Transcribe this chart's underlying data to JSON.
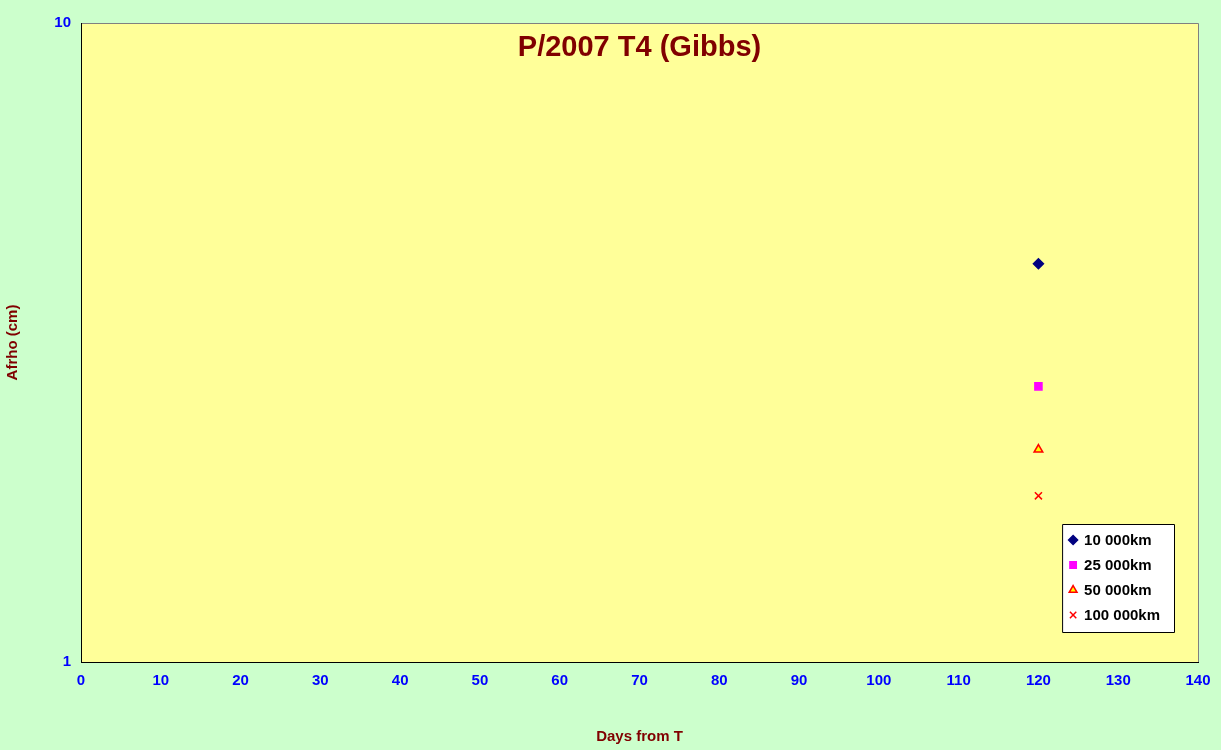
{
  "chart_data": {
    "type": "scatter",
    "title": "P/2007 T4 (Gibbs)",
    "xlabel": "Days from T",
    "ylabel": "Afrho (cm)",
    "xlim": [
      0,
      140
    ],
    "xticks": [
      0,
      10,
      20,
      30,
      40,
      50,
      60,
      70,
      80,
      90,
      100,
      110,
      120,
      130,
      140
    ],
    "ylim": [
      1,
      10
    ],
    "yticks": [
      1,
      10
    ],
    "log": "y",
    "grid": false,
    "legend": "bottom right",
    "x": [
      120
    ],
    "series": [
      {
        "name": "10 000km",
        "color": "#000080",
        "marker": "diamond",
        "values": [
          4.2
        ]
      },
      {
        "name": "25 000km",
        "color": "#ff00ff",
        "marker": "square",
        "values": [
          2.7
        ]
      },
      {
        "name": "50 000km",
        "color": "#ff0000",
        "marker": "triangle",
        "values": [
          2.15
        ]
      },
      {
        "name": "100 000km",
        "color": "#ff0000",
        "marker": "cross",
        "values": [
          1.82
        ]
      }
    ]
  }
}
